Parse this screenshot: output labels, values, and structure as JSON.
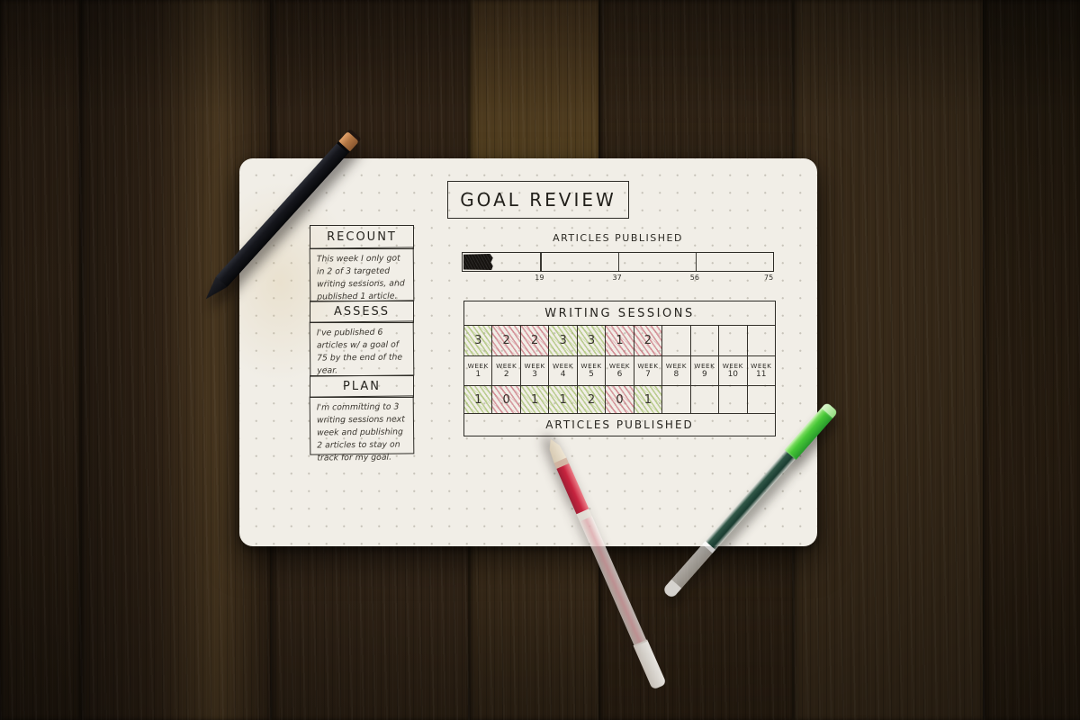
{
  "paper": {
    "title": "GOAL REVIEW",
    "sections": [
      {
        "heading": "RECOUNT",
        "body": "This week I only got in 2 of 3 targeted writing sessions, and published 1 article."
      },
      {
        "heading": "ASSESS",
        "body": "I've published 6 articles w/ a goal of 75 by the end of the year."
      },
      {
        "heading": "PLAN",
        "body": "I'm committing to 3 writing sessions next week and publishing 2 articles to stay on track for my goal."
      }
    ],
    "progress": {
      "title": "ARTICLES PUBLISHED",
      "tick_labels": [
        "19",
        "37",
        "56",
        "75"
      ],
      "goal": 75,
      "completed": 6
    },
    "tracker": {
      "title": "WRITING SESSIONS",
      "footer": "ARTICLES PUBLISHED",
      "week_word": "WEEK",
      "week_numbers": [
        "1",
        "2",
        "3",
        "4",
        "5",
        "6",
        "7",
        "8",
        "9",
        "10",
        "11"
      ],
      "sessions": [
        "3",
        "2",
        "2",
        "3",
        "3",
        "1",
        "2",
        "",
        "",
        "",
        ""
      ],
      "sessions_hatch": [
        "green",
        "red",
        "red",
        "green",
        "green",
        "red",
        "red",
        "none",
        "none",
        "none",
        "none"
      ],
      "articles": [
        "1",
        "0",
        "1",
        "1",
        "2",
        "0",
        "1",
        "",
        "",
        "",
        ""
      ],
      "articles_hatch": [
        "green",
        "red",
        "green",
        "green",
        "green",
        "red",
        "green",
        "none",
        "none",
        "none",
        "none"
      ]
    }
  },
  "colors": {
    "paper": "#f1eee7",
    "ink": "#26241f",
    "hatch_green": "#98b858",
    "hatch_red": "#c15464",
    "pen_copper": "#b07544",
    "pen_red_ink": "#c71e3a",
    "pen_green_cap": "#46c736",
    "pen_green_ink": "#123a2c"
  },
  "scene": {
    "background": "dark wood table",
    "objects": [
      "black pen with copper knock",
      "red gel pen",
      "green gel pen",
      "dot-grid notebook page"
    ]
  },
  "chart_data": [
    {
      "type": "bar",
      "title": "ARTICLES PUBLISHED",
      "orientation": "horizontal-progress",
      "values": [
        6
      ],
      "xlim": [
        0,
        75
      ],
      "tick_labels": [
        "19",
        "37",
        "56",
        "75"
      ]
    },
    {
      "type": "table",
      "title": "WRITING SESSIONS",
      "footer_label": "ARTICLES PUBLISHED",
      "categories": [
        "WEEK 1",
        "WEEK 2",
        "WEEK 3",
        "WEEK 4",
        "WEEK 5",
        "WEEK 6",
        "WEEK 7",
        "WEEK 8",
        "WEEK 9",
        "WEEK 10",
        "WEEK 11"
      ],
      "series": [
        {
          "name": "Writing sessions",
          "values": [
            3,
            2,
            2,
            3,
            3,
            1,
            2,
            null,
            null,
            null,
            null
          ]
        },
        {
          "name": "Articles published",
          "values": [
            1,
            0,
            1,
            1,
            2,
            0,
            1,
            null,
            null,
            null,
            null
          ]
        }
      ]
    }
  ]
}
